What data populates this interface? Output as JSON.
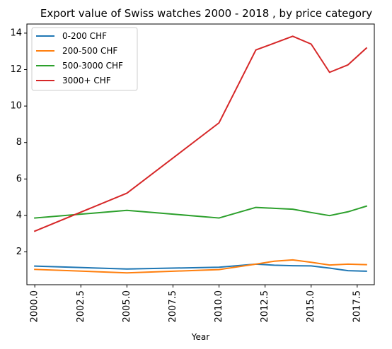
{
  "chart_data": {
    "type": "line",
    "title": "Export value of Swiss watches 2000 - 2018 , by price category",
    "xlabel": "Year",
    "ylabel": "",
    "xlim": [
      2000.0,
      2018.0
    ],
    "ylim": [
      0.2,
      14.5
    ],
    "x_ticks": [
      2000.0,
      2002.5,
      2005.0,
      2007.5,
      2010.0,
      2012.5,
      2015.0,
      2017.5
    ],
    "x_tick_labels": [
      "2000.0",
      "2002.5",
      "2005.0",
      "2007.5",
      "2010.0",
      "2012.5",
      "2015.0",
      "2017.5"
    ],
    "y_ticks": [
      2,
      4,
      6,
      8,
      10,
      12,
      14
    ],
    "y_tick_labels": [
      "2",
      "4",
      "6",
      "8",
      "10",
      "12",
      "14"
    ],
    "grid": false,
    "legend_position": "top-left",
    "x": [
      2000,
      2005,
      2010,
      2012,
      2013,
      2014,
      2015,
      2016,
      2017,
      2018
    ],
    "series": [
      {
        "name": "0-200 CHF",
        "color": "#1f77b4",
        "values": [
          1.22,
          1.06,
          1.16,
          1.33,
          1.27,
          1.24,
          1.23,
          1.11,
          0.97,
          0.94
        ]
      },
      {
        "name": "200-500 CHF",
        "color": "#ff7f0e",
        "values": [
          1.04,
          0.85,
          1.03,
          1.33,
          1.49,
          1.56,
          1.43,
          1.28,
          1.33,
          1.3
        ]
      },
      {
        "name": "500-3000 CHF",
        "color": "#2ca02c",
        "values": [
          3.86,
          4.28,
          3.86,
          4.44,
          4.39,
          4.34,
          4.16,
          3.99,
          4.2,
          4.51
        ]
      },
      {
        "name": "3000+ CHF",
        "color": "#d62728",
        "values": [
          3.14,
          5.22,
          9.08,
          13.08,
          13.45,
          13.83,
          13.4,
          11.85,
          12.26,
          13.18
        ]
      }
    ]
  }
}
